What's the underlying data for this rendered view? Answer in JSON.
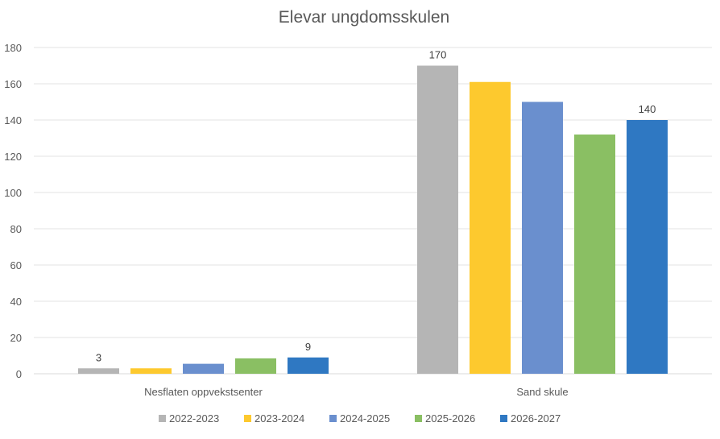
{
  "chart_data": {
    "type": "bar",
    "title": "Elevar ungdomsskulen",
    "categories": [
      "Nesflaten oppvekstsenter",
      "Sand skule"
    ],
    "series": [
      {
        "name": "2022-2023",
        "color": "#B5B5B5",
        "values": [
          3,
          170
        ]
      },
      {
        "name": "2023-2024",
        "color": "#FDC92E",
        "values": [
          3,
          161
        ]
      },
      {
        "name": "2024-2025",
        "color": "#6A8FCE",
        "values": [
          5.5,
          150
        ]
      },
      {
        "name": "2025-2026",
        "color": "#8ABF63",
        "values": [
          8.5,
          132
        ]
      },
      {
        "name": "2026-2027",
        "color": "#2F78C2",
        "values": [
          9,
          140
        ]
      }
    ],
    "data_labels": [
      {
        "series": 0,
        "category": 0,
        "text": "3"
      },
      {
        "series": 4,
        "category": 0,
        "text": "9"
      },
      {
        "series": 0,
        "category": 1,
        "text": "170"
      },
      {
        "series": 4,
        "category": 1,
        "text": "140"
      }
    ],
    "ylim": [
      0,
      180
    ],
    "yticks": [
      "0",
      "20",
      "40",
      "60",
      "80",
      "100",
      "120",
      "140",
      "160",
      "180"
    ],
    "grid": true,
    "legend_position": "bottom"
  }
}
